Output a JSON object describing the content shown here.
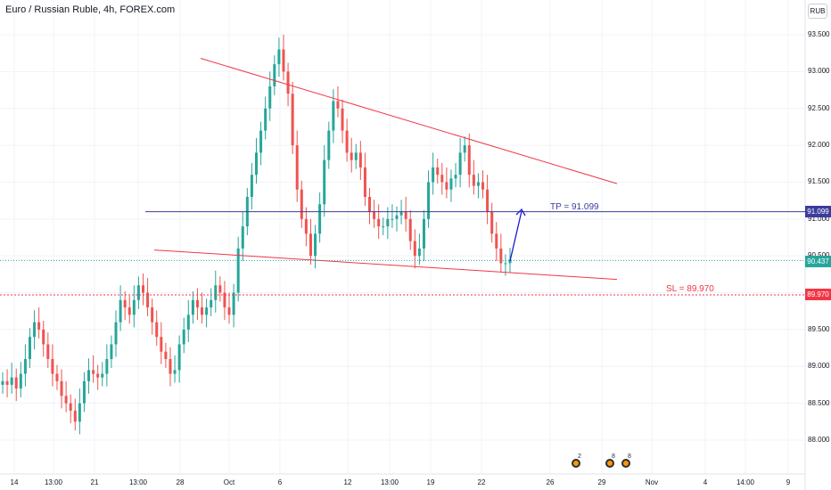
{
  "title": "Euro / Russian Ruble, 4h, FOREX.com",
  "currency_button": "RUB",
  "colors": {
    "up": "#26a69a",
    "down": "#ef5350",
    "trendline": "#f23645",
    "tp": "#3c3c9c",
    "sl": "#f23645",
    "arrow": "#1c1ccc",
    "current": "#26a69a"
  },
  "annotations": {
    "tp": "TP = 91.099",
    "sl": "SL = 89.970"
  },
  "price_tags": {
    "tp": "91.099",
    "current": "90.437",
    "sl": "89.970"
  },
  "events": [
    {
      "icon": "earnings-icon",
      "count": "2"
    },
    {
      "icon": "earnings-icon",
      "count": "8"
    },
    {
      "icon": "earnings-icon",
      "count": "8"
    }
  ],
  "chart_data": {
    "type": "candlestick",
    "title": "Euro / Russian Ruble, 4h, FOREX.com",
    "ylim": [
      87.65,
      93.7
    ],
    "y_ticks": [
      "88.000",
      "88.500",
      "89.000",
      "89.500",
      "90.000",
      "90.500",
      "91.000",
      "91.500",
      "92.000",
      "92.500",
      "93.000",
      "93.500"
    ],
    "x_ticks": [
      "14",
      "13:00",
      "21",
      "13:00",
      "28",
      "Oct",
      "6",
      "12",
      "13:00",
      "19",
      "22",
      "26",
      "29",
      "Nov",
      "4",
      "14:00",
      "9"
    ],
    "series": [
      {
        "values": [
          88.8,
          88.75,
          88.85,
          88.7,
          88.9,
          89.1,
          89.4,
          89.6,
          89.5,
          89.3,
          89.1,
          88.9,
          88.8,
          88.6,
          88.5,
          88.4,
          88.25,
          88.5,
          88.8,
          88.95,
          88.9,
          88.85,
          88.9,
          89.1,
          89.3,
          89.6,
          89.9,
          89.8,
          89.7,
          89.9,
          90.1,
          90.0,
          89.8,
          89.6,
          89.4,
          89.2,
          89.1,
          88.9,
          88.95,
          89.3,
          89.5,
          89.7,
          89.9,
          89.8,
          89.7,
          89.8,
          89.9,
          90.1,
          90.0,
          89.8,
          89.7,
          90.0,
          90.6,
          90.9,
          91.3,
          91.6,
          91.9,
          92.2,
          92.5,
          92.8,
          93.1,
          93.3,
          93.0,
          92.7,
          92.0,
          91.4,
          91.0,
          90.8,
          90.5,
          90.8,
          91.2,
          91.8,
          92.2,
          92.6,
          92.5,
          92.2,
          91.9,
          91.8,
          91.9,
          91.7,
          91.3,
          91.1,
          91.0,
          90.9,
          90.9,
          91.0,
          91.0,
          91.05,
          91.1,
          91.0,
          90.7,
          90.5,
          90.6,
          91.0,
          91.5,
          91.7,
          91.6,
          91.5,
          91.4,
          91.55,
          91.6,
          91.9,
          92.0,
          91.6,
          91.45,
          91.5,
          91.4,
          91.1,
          90.8,
          90.6,
          90.4,
          90.4,
          90.45
        ]
      }
    ],
    "trendlines": [
      {
        "from": {
          "x": "26 Sep",
          "y": 93.18
        },
        "to": {
          "x": "end",
          "y": 91.48
        }
      },
      {
        "from": {
          "x": "26 Sep",
          "y": 90.58
        },
        "to": {
          "x": "end",
          "y": 90.18
        }
      }
    ],
    "horizontal_levels": [
      {
        "label": "TP",
        "y": 91.099
      },
      {
        "label": "SL",
        "y": 89.97
      },
      {
        "label": "current",
        "y": 90.437
      }
    ]
  }
}
